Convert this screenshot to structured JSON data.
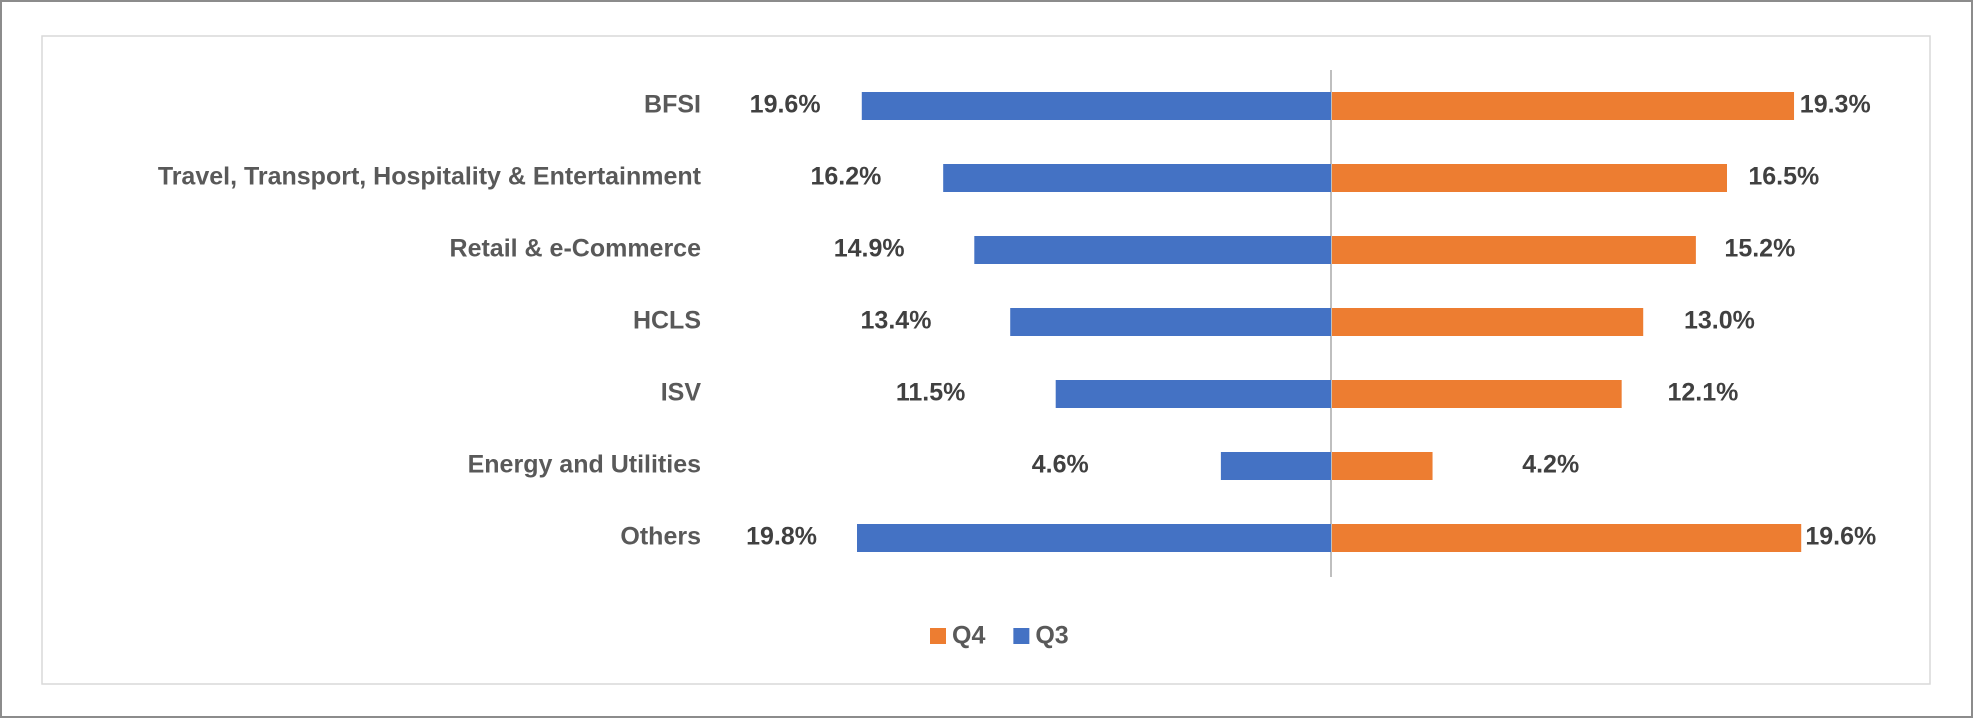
{
  "chart_data": {
    "type": "butterfly",
    "categories": [
      "BFSI",
      "Travel, Transport, Hospitality & Entertainment",
      "Retail & e-Commerce",
      "HCLS",
      "ISV",
      "Energy and Utilities",
      "Others"
    ],
    "series": [
      {
        "name": "Q4",
        "color": "#ed7d31",
        "side": "right",
        "values": [
          19.3,
          16.5,
          15.2,
          13.0,
          12.1,
          4.2,
          19.6
        ],
        "value_labels": [
          "19.3%",
          "16.5%",
          "15.2%",
          "13.0%",
          "12.1%",
          "4.2%",
          "19.6%"
        ]
      },
      {
        "name": "Q3",
        "color": "#4472c4",
        "side": "left",
        "values": [
          19.6,
          16.2,
          14.9,
          13.4,
          11.5,
          4.6,
          19.8
        ],
        "value_labels": [
          "19.6%",
          "16.2%",
          "14.9%",
          "13.4%",
          "11.5%",
          "4.6%",
          "19.8%"
        ]
      }
    ],
    "legend": "bottom"
  }
}
